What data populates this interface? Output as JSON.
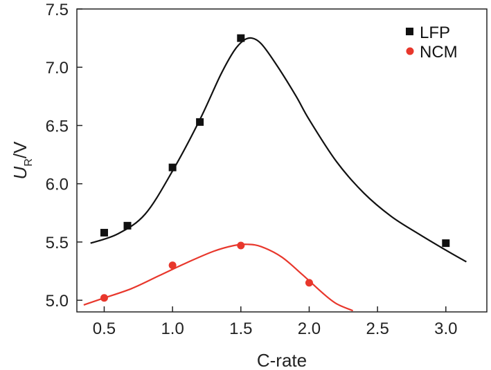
{
  "chart_data": {
    "type": "scatter",
    "title": "",
    "xlabel": "C-rate",
    "ylabel": {
      "main": "U",
      "sub": "R",
      "unit": "/V"
    },
    "xlim": [
      0.3,
      3.3
    ],
    "ylim": [
      4.9,
      7.5
    ],
    "xticks": [
      "0.5",
      "1.0",
      "1.5",
      "2.0",
      "2.5",
      "3.0"
    ],
    "yticks": [
      "5.0",
      "5.5",
      "6.0",
      "6.5",
      "7.0",
      "7.5"
    ],
    "legend_position": "top-right",
    "series": [
      {
        "name": "LFP",
        "color": "#111111",
        "marker": "square",
        "points": [
          {
            "x": 0.5,
            "y": 5.58
          },
          {
            "x": 0.67,
            "y": 5.64
          },
          {
            "x": 1.0,
            "y": 6.14
          },
          {
            "x": 1.2,
            "y": 6.53
          },
          {
            "x": 1.5,
            "y": 7.25
          },
          {
            "x": 3.0,
            "y": 5.49
          }
        ],
        "fit": [
          {
            "x": 0.4,
            "y": 5.49
          },
          {
            "x": 0.6,
            "y": 5.57
          },
          {
            "x": 0.8,
            "y": 5.74
          },
          {
            "x": 1.0,
            "y": 6.11
          },
          {
            "x": 1.2,
            "y": 6.55
          },
          {
            "x": 1.35,
            "y": 6.93
          },
          {
            "x": 1.45,
            "y": 7.14
          },
          {
            "x": 1.52,
            "y": 7.23
          },
          {
            "x": 1.58,
            "y": 7.25
          },
          {
            "x": 1.65,
            "y": 7.2
          },
          {
            "x": 1.75,
            "y": 7.04
          },
          {
            "x": 1.9,
            "y": 6.76
          },
          {
            "x": 2.0,
            "y": 6.55
          },
          {
            "x": 2.2,
            "y": 6.19
          },
          {
            "x": 2.4,
            "y": 5.92
          },
          {
            "x": 2.6,
            "y": 5.72
          },
          {
            "x": 2.8,
            "y": 5.57
          },
          {
            "x": 3.0,
            "y": 5.43
          },
          {
            "x": 3.15,
            "y": 5.33
          }
        ]
      },
      {
        "name": "NCM",
        "color": "#e8372c",
        "marker": "circle",
        "points": [
          {
            "x": 0.5,
            "y": 5.02
          },
          {
            "x": 1.0,
            "y": 5.3
          },
          {
            "x": 1.5,
            "y": 5.47
          },
          {
            "x": 2.0,
            "y": 5.15
          }
        ],
        "fit": [
          {
            "x": 0.35,
            "y": 4.96
          },
          {
            "x": 0.5,
            "y": 5.02
          },
          {
            "x": 0.7,
            "y": 5.1
          },
          {
            "x": 0.9,
            "y": 5.21
          },
          {
            "x": 1.1,
            "y": 5.32
          },
          {
            "x": 1.3,
            "y": 5.42
          },
          {
            "x": 1.45,
            "y": 5.47
          },
          {
            "x": 1.55,
            "y": 5.48
          },
          {
            "x": 1.65,
            "y": 5.46
          },
          {
            "x": 1.8,
            "y": 5.37
          },
          {
            "x": 1.95,
            "y": 5.22
          },
          {
            "x": 2.1,
            "y": 5.06
          },
          {
            "x": 2.2,
            "y": 4.97
          },
          {
            "x": 2.32,
            "y": 4.91
          }
        ]
      }
    ]
  }
}
